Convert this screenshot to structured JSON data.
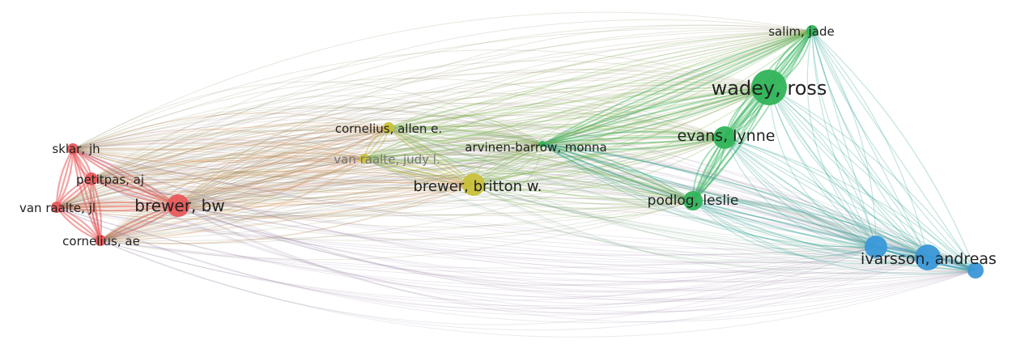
{
  "colors": {
    "cluster_red": "#e8595a",
    "cluster_yellow": "#c9c03b",
    "cluster_green": "#32b45a",
    "cluster_blue": "#3a98d8",
    "background": "#ffffff"
  },
  "nodes": [
    {
      "id": "wadey",
      "label": "wadey, ross",
      "cluster": "green"
    },
    {
      "id": "salim",
      "label": "salim, jade",
      "cluster": "green"
    },
    {
      "id": "evans",
      "label": "evans, lynne",
      "cluster": "green"
    },
    {
      "id": "podlog",
      "label": "podlog, leslie",
      "cluster": "green"
    },
    {
      "id": "arvinen",
      "label": "arvinen-barrow, monna",
      "cluster": "green"
    },
    {
      "id": "cornelius_allen",
      "label": "cornelius, allen e.",
      "cluster": "yellow"
    },
    {
      "id": "vanraalte_judy",
      "label": "van raalte, judy l.",
      "cluster": "yellow"
    },
    {
      "id": "brewer_britton",
      "label": "brewer, britton w.",
      "cluster": "yellow"
    },
    {
      "id": "sklar",
      "label": "sklar, jh",
      "cluster": "red"
    },
    {
      "id": "petitpas",
      "label": "petitpas, aj",
      "cluster": "red"
    },
    {
      "id": "brewer_bw",
      "label": "brewer, bw",
      "cluster": "red"
    },
    {
      "id": "vanraalte_jl",
      "label": "van raalte, jl",
      "cluster": "red"
    },
    {
      "id": "cornelius_ae",
      "label": "cornelius, ae",
      "cluster": "red"
    },
    {
      "id": "ivarsson",
      "label": "ivarsson, andreas",
      "cluster": "blue"
    },
    {
      "id": "blue_a",
      "label": "",
      "cluster": "blue"
    },
    {
      "id": "blue_c",
      "label": "",
      "cluster": "blue"
    }
  ]
}
